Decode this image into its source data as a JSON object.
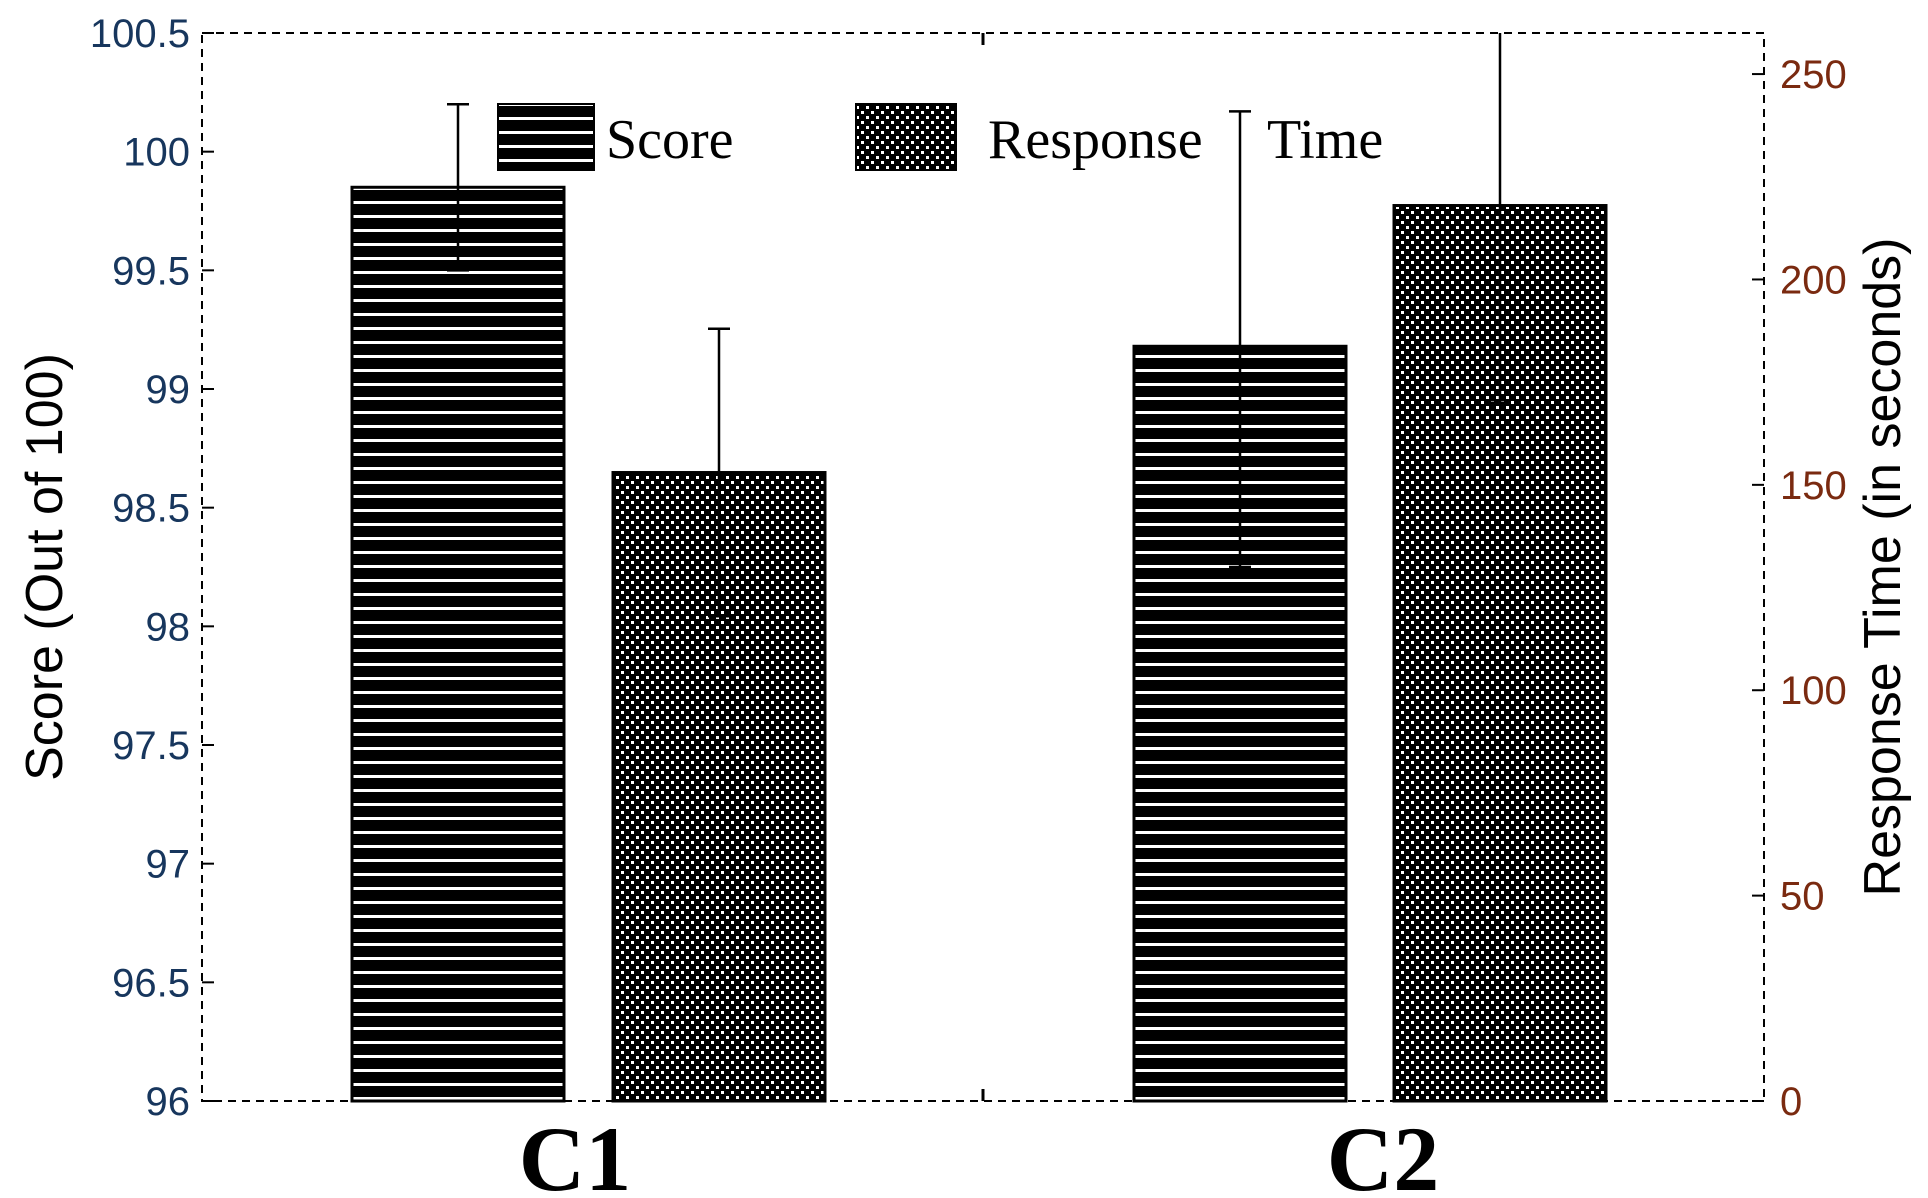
{
  "chart_data": {
    "type": "bar",
    "categories": [
      "C1",
      "C2"
    ],
    "series": [
      {
        "name": "Score",
        "axis": "left",
        "pattern": "horizontal-stripes",
        "values": [
          99.85,
          99.18
        ],
        "error_upper": [
          100.2,
          100.17
        ],
        "error_lower": [
          99.5,
          98.25
        ]
      },
      {
        "name": "Response Time",
        "axis": "right",
        "pattern": "checkered",
        "values": [
          153,
          218
        ],
        "error_upper": [
          188,
          260
        ],
        "error_lower": [
          118,
          170
        ]
      }
    ],
    "legend": {
      "score_label": "Score",
      "response_word1": "Response",
      "response_word2": "Time"
    },
    "y_left": {
      "label": "Score (Out of 100)",
      "lim": [
        96,
        100.5
      ],
      "ticks": [
        "96",
        "96.5",
        "97",
        "97.5",
        "98",
        "98.5",
        "99",
        "99.5",
        "100",
        "100.5"
      ]
    },
    "y_right": {
      "label": "Response Time (in seconds)",
      "lim": [
        0,
        260
      ],
      "ticks": [
        "0",
        "50",
        "100",
        "150",
        "200",
        "250"
      ]
    },
    "colors": {
      "bar": "#000000",
      "left_axis_text": "#17365d",
      "right_axis_text": "#7a2a10"
    },
    "grid": false
  }
}
